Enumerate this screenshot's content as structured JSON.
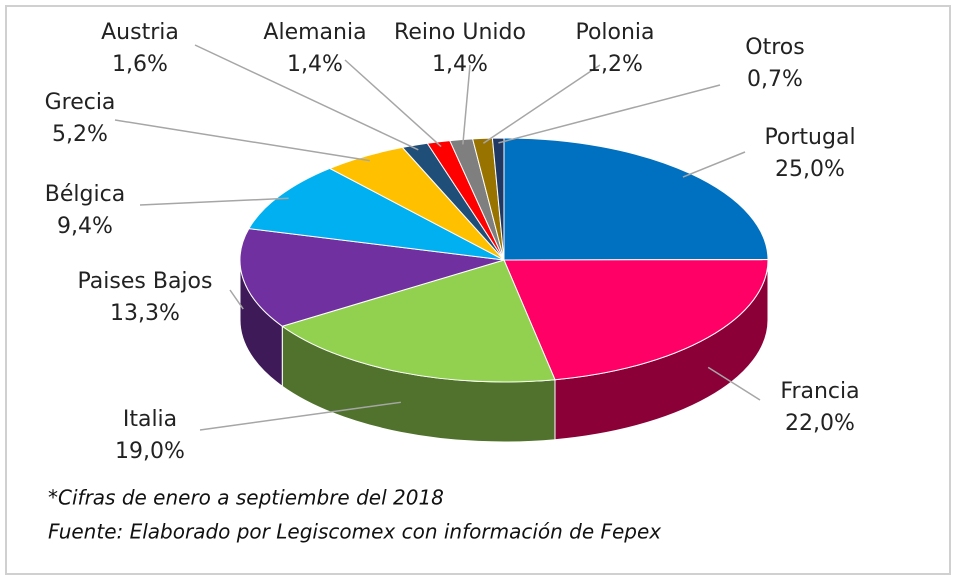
{
  "chart_data": {
    "type": "pie",
    "categories": [
      "Portugal",
      "Francia",
      "Italia",
      "Paises Bajos",
      "Bélgica",
      "Grecia",
      "Austria",
      "Alemania",
      "Reino Unido",
      "Polonia",
      "Otros"
    ],
    "values": [
      25.0,
      22.0,
      19.0,
      13.3,
      9.4,
      5.2,
      1.6,
      1.4,
      1.4,
      1.2,
      0.7
    ],
    "value_labels": [
      "25,0%",
      "22,0%",
      "19,0%",
      "13,3%",
      "9,4%",
      "5,2%",
      "1,6%",
      "1,4%",
      "1,4%",
      "1,2%",
      "0,7%"
    ],
    "colors": [
      "#0070c0",
      "#ff0066",
      "#92d050",
      "#7030a0",
      "#00b0f0",
      "#ffc000",
      "#1f4e79",
      "#ff0000",
      "#7f7f7f",
      "#997300",
      "#203864"
    ],
    "notes": [
      "*Cifras de enero a septiembre del 2018",
      "Fuente: Elaborado por Legiscomex con información de Fepex"
    ]
  }
}
